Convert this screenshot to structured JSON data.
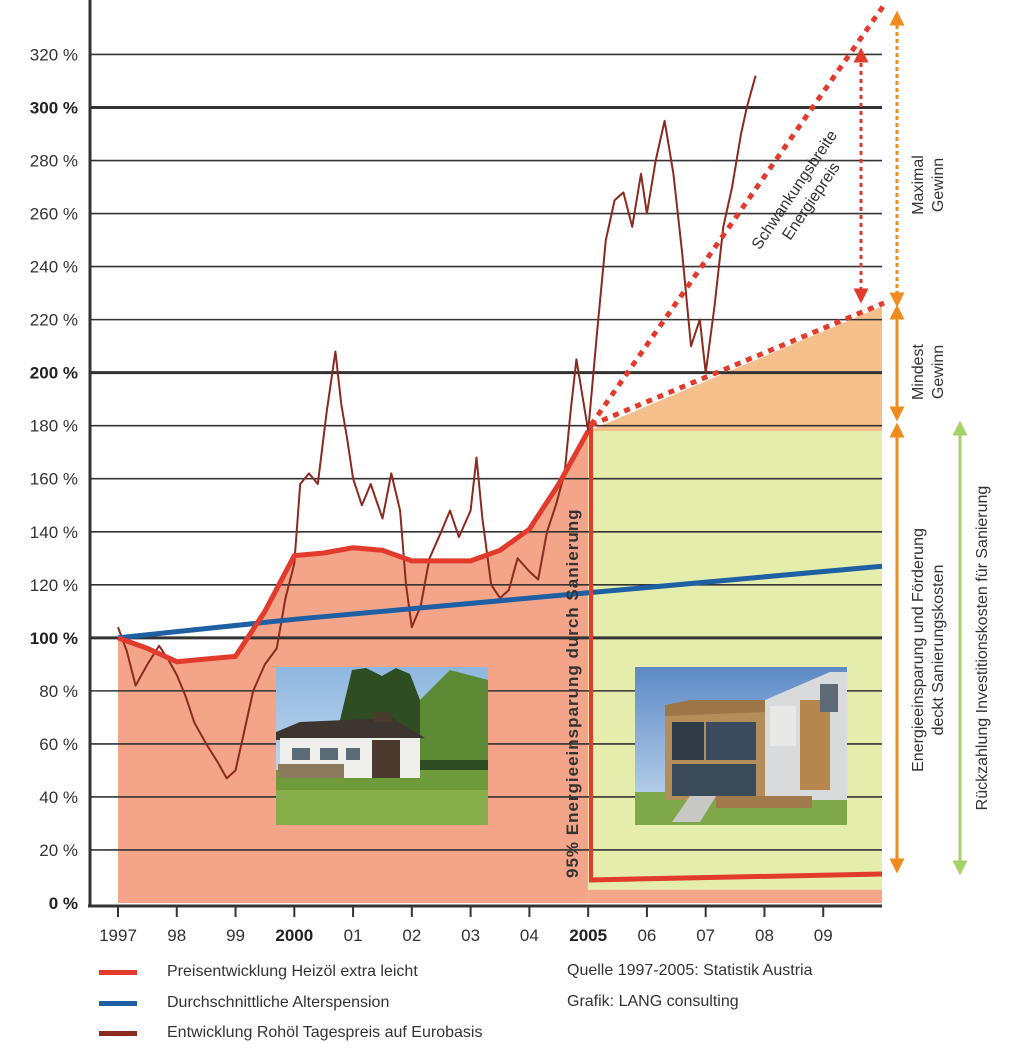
{
  "chart_data": {
    "type": "line",
    "y_ticks": [
      "0 %",
      "20 %",
      "40 %",
      "60 %",
      "80 %",
      "100 %",
      "120 %",
      "140 %",
      "160 %",
      "180 %",
      "200 %",
      "220 %",
      "240 %",
      "260 %",
      "280 %",
      "300 %",
      "320 %"
    ],
    "y_tick_values": [
      0,
      20,
      40,
      60,
      80,
      100,
      120,
      140,
      160,
      180,
      200,
      220,
      240,
      260,
      280,
      300,
      320
    ],
    "y_bold_ticks": [
      "0 %",
      "100 %",
      "200 %",
      "300 %"
    ],
    "x_ticks": [
      "1997",
      "98",
      "99",
      "2000",
      "01",
      "02",
      "03",
      "04",
      "2005",
      "06",
      "07",
      "08",
      "09"
    ],
    "x_tick_years": [
      1997,
      1998,
      1999,
      2000,
      2001,
      2002,
      2003,
      2004,
      2005,
      2006,
      2007,
      2008,
      2009
    ],
    "x_bold_ticks": [
      "2000",
      "2005"
    ],
    "ylim": [
      0,
      335
    ],
    "xlim": [
      1997,
      2010
    ],
    "series": [
      {
        "name": "Preisentwicklung Heizöl extra leicht",
        "color": "#e23a2c",
        "x": [
          1997.0,
          1997.5,
          1998.0,
          1998.5,
          1999.0,
          1999.5,
          2000.0,
          2000.5,
          2001.0,
          2001.5,
          2002.0,
          2002.5,
          2003.0,
          2003.5,
          2004.0,
          2004.5,
          2005.0
        ],
        "y": [
          100,
          96,
          91,
          92,
          93,
          110,
          131,
          132,
          134,
          133,
          129,
          129,
          129,
          133,
          141,
          158,
          178
        ]
      },
      {
        "name": "Durchschnittliche Alterspension",
        "color": "#1f5fa3",
        "x": [
          1997.0,
          2000.0,
          2005.0,
          2010.0
        ],
        "y": [
          100,
          107,
          117,
          127
        ]
      },
      {
        "name": "Entwicklung Rohöl Tagespreis auf Eurobasis",
        "color": "#8b2a1e",
        "x": [
          1997.0,
          1997.15,
          1997.3,
          1997.5,
          1997.7,
          1997.85,
          1998.0,
          1998.15,
          1998.3,
          1998.5,
          1998.7,
          1998.85,
          1999.0,
          1999.15,
          1999.3,
          1999.5,
          1999.7,
          1999.85,
          2000.0,
          2000.1,
          2000.25,
          2000.4,
          2000.55,
          2000.7,
          2000.8,
          2000.9,
          2001.0,
          2001.15,
          2001.3,
          2001.5,
          2001.65,
          2001.8,
          2001.9,
          2002.0,
          2002.15,
          2002.3,
          2002.5,
          2002.65,
          2002.8,
          2003.0,
          2003.1,
          2003.2,
          2003.35,
          2003.5,
          2003.65,
          2003.8,
          2004.0,
          2004.15,
          2004.3,
          2004.45,
          2004.6,
          2004.7,
          2004.8,
          2005.0,
          2005.15,
          2005.3,
          2005.45,
          2005.6,
          2005.75,
          2005.9,
          2006.0,
          2006.15,
          2006.3,
          2006.45,
          2006.6,
          2006.75,
          2006.9,
          2007.0,
          2007.15,
          2007.3,
          2007.45,
          2007.6,
          2007.7,
          2007.85
        ],
        "y": [
          104,
          95,
          82,
          90,
          97,
          92,
          86,
          78,
          68,
          60,
          53,
          47,
          50,
          65,
          80,
          90,
          96,
          115,
          128,
          158,
          162,
          158,
          185,
          208,
          188,
          175,
          160,
          150,
          158,
          145,
          162,
          148,
          120,
          104,
          112,
          130,
          140,
          148,
          138,
          148,
          168,
          145,
          120,
          115,
          118,
          130,
          125,
          122,
          140,
          150,
          162,
          185,
          205,
          178,
          215,
          250,
          265,
          268,
          255,
          275,
          260,
          280,
          295,
          275,
          245,
          210,
          220,
          200,
          225,
          255,
          270,
          290,
          300,
          312
        ]
      }
    ],
    "annotations": {
      "vertical_label": "95% Energieeinsparung durch Sanierung",
      "range_label_line1": "Schwankungsbreite",
      "range_label_line2": "Energiepreis",
      "max_gain_line1": "Maximal",
      "max_gain_line2": "Gewinn",
      "min_gain_line1": "Mindest",
      "min_gain_line2": "Gewinn",
      "energy_savings_line1": "Energieeinsparung und Förderung",
      "energy_savings_line2": "deckt Sanierungskosten",
      "repayment_label": "Rückzahlung Investitionskosten  für Sanierung"
    },
    "regions": {
      "before_fill": "#f4a589",
      "savings_fill": "#e5edac",
      "gain_fill": "#f6c08c"
    },
    "photos": {
      "left": "old-house-photo",
      "right": "new-house-photo"
    }
  },
  "legend": {
    "items": [
      {
        "label": "Preisentwicklung Heizöl extra leicht",
        "color": "#e23a2c"
      },
      {
        "label": "Durchschnittliche Alterspension",
        "color": "#1f5fa3"
      },
      {
        "label": "Entwicklung Rohöl Tagespreis auf Eurobasis",
        "color": "#8b2a1e"
      }
    ]
  },
  "source": {
    "line1": "Quelle 1997-2005: Statistik Austria",
    "line2": "Grafik: LANG consulting"
  }
}
